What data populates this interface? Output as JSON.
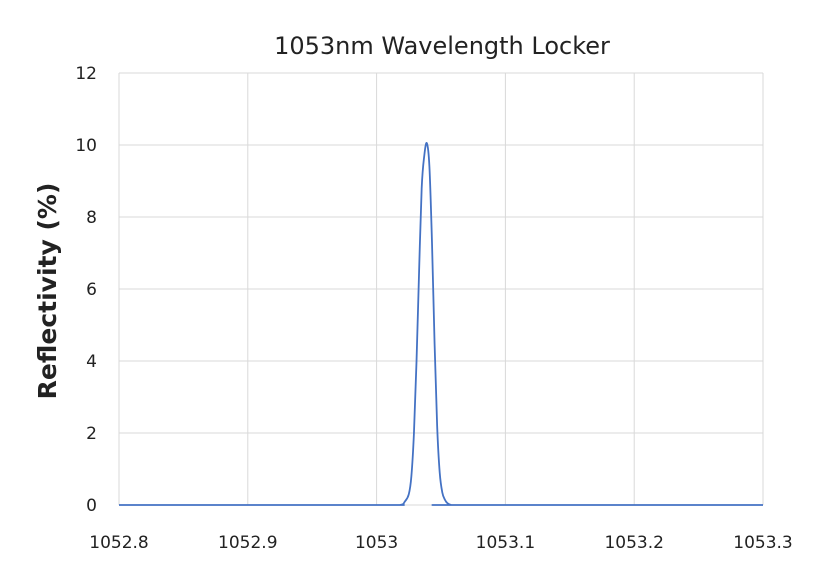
{
  "chart_data": {
    "type": "line",
    "title": "1053nm Wavelength Locker",
    "xlabel": "",
    "ylabel": "Reflectivity (%)",
    "xlim": [
      1052.8,
      1053.3
    ],
    "ylim": [
      0,
      12
    ],
    "x_ticks": [
      "1052.8",
      "1052.9",
      "1053",
      "1053.1",
      "1053.2",
      "1053.3"
    ],
    "y_ticks": [
      "0",
      "2",
      "4",
      "6",
      "8",
      "10",
      "12"
    ],
    "grid": true,
    "series_color": "#4472C4",
    "series": [
      {
        "x": [
          1052.8,
          1053.0,
          1053.018,
          1053.022,
          1053.025,
          1053.027,
          1053.029,
          1053.031,
          1053.033,
          1053.035,
          1053.037,
          1053.039,
          1053.041,
          1053.043,
          1053.045,
          1053.047,
          1053.049,
          1053.051,
          1053.053,
          1053.055,
          1053.058,
          1053.062,
          1053.3
        ],
        "y": [
          0,
          0,
          0,
          0.1,
          0.3,
          0.8,
          2.0,
          4.0,
          6.5,
          8.8,
          9.7,
          10.05,
          9.4,
          7.3,
          4.5,
          2.2,
          0.9,
          0.35,
          0.15,
          0.05,
          0,
          0,
          0
        ]
      }
    ]
  }
}
